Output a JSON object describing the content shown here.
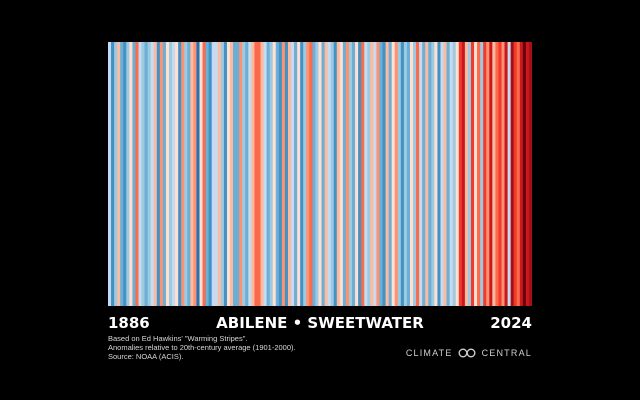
{
  "chart_data": {
    "type": "heatmap",
    "subtype": "warming-stripes",
    "title": "ABILENE • SWEETWATER",
    "start_year": "1886",
    "end_year": "2024",
    "palette": [
      "#08306b",
      "#2171b5",
      "#4292c6",
      "#6baed6",
      "#9ecae1",
      "#c6dbef",
      "#deebf7",
      "#fee0d2",
      "#fcbba1",
      "#fc9272",
      "#fb6a4a",
      "#ef3b2c",
      "#cb181d",
      "#a50f15",
      "#67000d"
    ],
    "values": [
      -0.3,
      -0.8,
      -0.5,
      0.4,
      -0.6,
      -0.9,
      -0.4,
      0.3,
      -0.7,
      0.8,
      -0.2,
      -0.5,
      -0.7,
      -0.4,
      -0.3,
      0.5,
      -0.9,
      0.6,
      -0.6,
      0.3,
      -0.5,
      -0.2,
      0.2,
      -0.8,
      0.7,
      -0.4,
      -0.6,
      0.4,
      0.6,
      -1.0,
      0.3,
      0.9,
      -0.7,
      -0.8,
      -0.3,
      -0.2,
      0.5,
      -0.5,
      -0.9,
      0.1,
      0.4,
      -0.6,
      -0.7,
      0.7,
      -0.4,
      -0.6,
      -0.2,
      0.5,
      0.8,
      0.9,
      0.5,
      -0.3,
      -0.6,
      -0.5,
      0.3,
      -0.7,
      -0.8,
      0.6,
      -0.9,
      0.5,
      -0.3,
      -0.6,
      0.3,
      -0.8,
      -0.5,
      0.7,
      0.9,
      -0.6,
      -0.4,
      0.2,
      -0.7,
      0.5,
      -0.3,
      -0.5,
      -0.9,
      0.4,
      0.2,
      -0.6,
      0.7,
      -0.4,
      -0.6,
      0.3,
      -0.8,
      0.8,
      -0.2,
      -0.5,
      0.4,
      -0.3,
      0.6,
      -0.6,
      -0.8,
      0.5,
      -0.7,
      0.3,
      0.6,
      -0.4,
      -0.9,
      -0.5,
      -0.7,
      0.3,
      -0.4,
      0.9,
      -0.3,
      -0.6,
      0.4,
      -0.7,
      -0.5,
      0.3,
      -0.8,
      -0.2,
      0.4,
      -0.6,
      -0.3,
      -0.5,
      0.3,
      1.1,
      1.2,
      0.5,
      -0.5,
      1.1,
      0.3,
      0.8,
      -0.4,
      1.0,
      0.6,
      1.2,
      0.4,
      0.9,
      1.0,
      0.7,
      1.3,
      -0.2,
      1.4,
      1.1,
      0.9,
      1.3,
      1.6,
      1.2,
      1.5
    ]
  },
  "footer": {
    "line1": "Based on Ed Hawkins' \"Warming Stripes\".",
    "line2": "Anomalies relative to 20th-century average (1901-2000).",
    "line3": "Source: NOAA (ACIS).",
    "brand_left": "CLIMATE",
    "brand_right": "CENTRAL"
  }
}
